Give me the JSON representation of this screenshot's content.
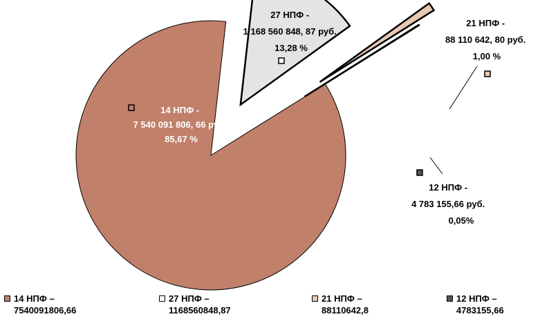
{
  "chart_data": {
    "type": "pie",
    "exploded": true,
    "start_angle_deg": 32,
    "slices": [
      {
        "label": "14 НПФ -",
        "value_text": "7 540 091 806, 66 руб.",
        "percent_text": "85,67 %",
        "value": 7540091806.66,
        "percent": 85.67,
        "color": "#c1806a"
      },
      {
        "label": "27 НПФ -",
        "value_text": "1 168 560 848, 87 руб.",
        "percent_text": "13,28 %",
        "value": 1168560848.87,
        "percent": 13.28,
        "color": "#e4e4e4"
      },
      {
        "label": "21 НПФ -",
        "value_text": "88 110 642, 80 руб.",
        "percent_text": "1,00 %",
        "value": 88110642.8,
        "percent": 1.0,
        "color": "#e8c7b4"
      },
      {
        "label": "12 НПФ -",
        "value_text": "4 783 155,66 руб.",
        "percent_text": "0,05%",
        "value": 4783155.66,
        "percent": 0.05,
        "color": "#555555"
      }
    ],
    "legend": [
      {
        "line1": "14 НПФ –",
        "line2": "7540091806,66",
        "color": "#c1806a"
      },
      {
        "line1": "27 НПФ –",
        "line2": "1168560848,87",
        "color": "#ffffff"
      },
      {
        "line1": "21 НПФ –",
        "line2": "88110642,8",
        "color": "#e8c7b4"
      },
      {
        "line1": "12 НПФ –",
        "line2": "4783155,66",
        "color": "#555555"
      }
    ],
    "legend_position": "bottom"
  }
}
